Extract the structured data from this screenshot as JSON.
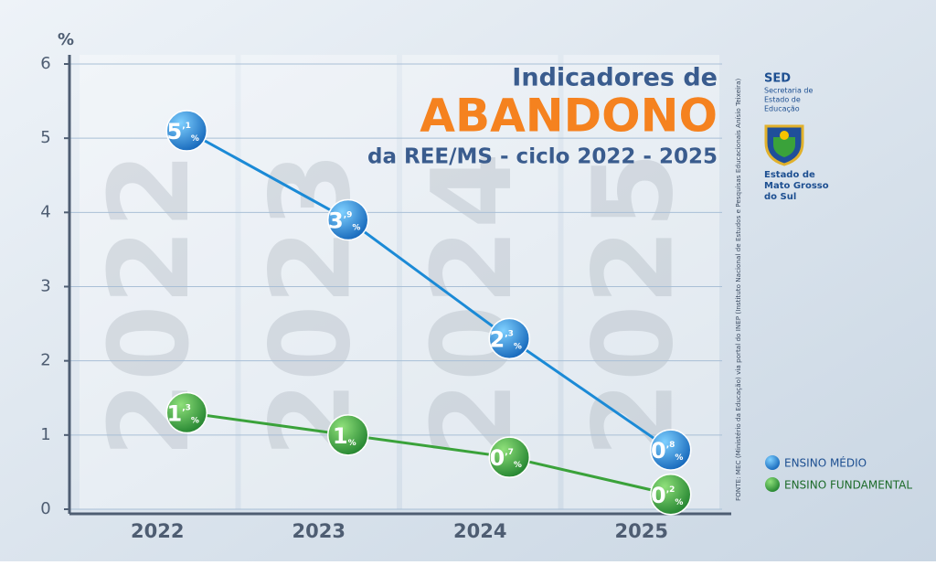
{
  "chart_data": {
    "type": "line",
    "title": "Indicadores de",
    "title_highlight": "ABANDONO",
    "subtitle": "da REE/MS - ciclo 2022 - 2025",
    "y_label": "%",
    "categories": [
      "2022",
      "2023",
      "2024",
      "2025"
    ],
    "series": [
      {
        "name": "ENSINO MÉDIO",
        "color": "#1b8ad6",
        "values": [
          5.1,
          3.9,
          2.3,
          0.8
        ],
        "value_labels": [
          "5,1%",
          "3,9%",
          "2,3%",
          "0,8%"
        ]
      },
      {
        "name": "ENSINO FUNDAMENTAL",
        "color": "#3aa23a",
        "values": [
          1.3,
          1.0,
          0.7,
          0.2
        ],
        "value_labels": [
          "1,3%",
          "1%",
          "0,7%",
          "0,2%"
        ]
      }
    ],
    "ylim": [
      0,
      6
    ],
    "yticks": [
      0,
      1,
      2,
      3,
      4,
      5,
      6
    ],
    "grid": true,
    "source": "FONTE: MEC (Ministério da Educação) via portal do INEP (Instituto Nacional de Estudos e Pesquisas Educacionais Anísio Teixeira)",
    "logo": {
      "acronym": "SED",
      "department": [
        "Secretaria de",
        "Estado de",
        "Educação"
      ],
      "state": [
        "Estado de",
        "Mato Grosso",
        "do Sul"
      ]
    }
  }
}
